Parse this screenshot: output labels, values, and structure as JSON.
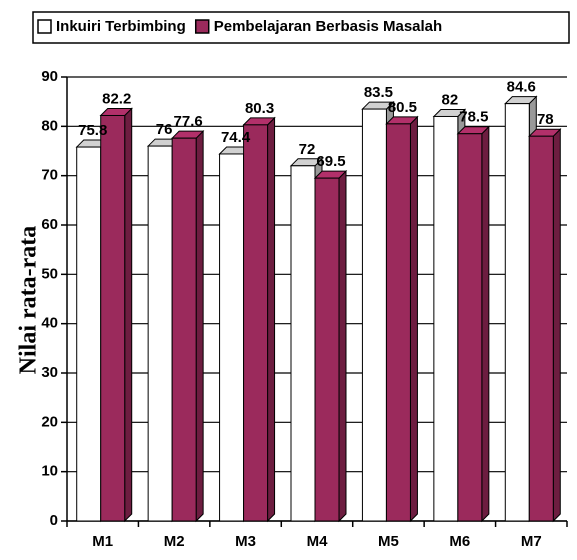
{
  "chart_data": {
    "type": "bar3d",
    "y_label": "Nilai rata-rata",
    "categories": [
      "M1",
      "M2",
      "M3",
      "M4",
      "M5",
      "M6",
      "M7"
    ],
    "series": [
      {
        "name": "Inkuiri Terbimbing",
        "color": "#ffffff",
        "values": [
          75.8,
          76,
          74.4,
          72,
          83.5,
          82,
          84.6
        ]
      },
      {
        "name": "Pembelajaran Berbasis Masalah",
        "color": "#9b2a5c",
        "values": [
          82.2,
          77.6,
          80.3,
          69.5,
          80.5,
          78.5,
          78
        ]
      }
    ],
    "ylim": [
      0,
      90
    ],
    "yticks": [
      0,
      10,
      20,
      30,
      40,
      50,
      60,
      70,
      80,
      90
    ],
    "grid": true,
    "legend": "top"
  }
}
